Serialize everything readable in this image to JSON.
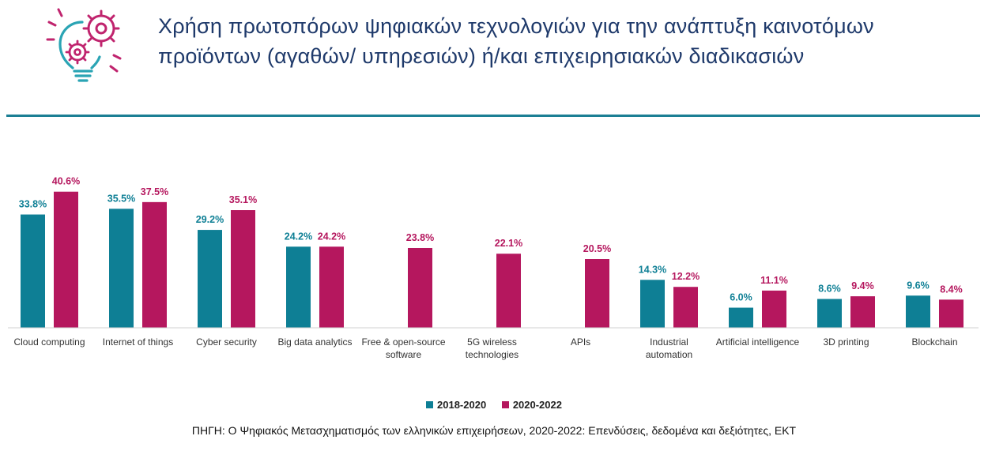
{
  "title_line1": "Χρήση πρωτοπόρων ψηφιακών τεχνολογιών για την ανάπτυξη καινοτόμων",
  "title_line2": "προϊόντων (αγαθών/ υπηρεσιών) ή/και επιχειρησιακών διαδικασιών",
  "source": "ΠΗΓΗ: Ο Ψηφιακός Μετασχηματισμός των ελληνικών επιχειρήσεων, 2020-2022: Επενδύσεις, δεδομένα και δεξιότητες, ΕΚΤ",
  "colors": {
    "series1": "#0e7f95",
    "series2": "#b5175e",
    "title": "#1f3a6b",
    "rule": "#1b7f94",
    "logo_pink": "#c0246e",
    "logo_teal": "#2aa4b4"
  },
  "chart_data": {
    "type": "bar",
    "categories": [
      [
        "Cloud computing"
      ],
      [
        "Internet of things"
      ],
      [
        "Cyber security"
      ],
      [
        "Big data analytics"
      ],
      [
        "Free & open-source",
        "software"
      ],
      [
        "5G wireless",
        "technologies"
      ],
      [
        "APIs"
      ],
      [
        "Industrial",
        "automation"
      ],
      [
        "Artificial intelligence"
      ],
      [
        "3D printing"
      ],
      [
        "Blockchain"
      ]
    ],
    "series": [
      {
        "name": "2018-2020",
        "values": [
          33.8,
          35.5,
          29.2,
          24.2,
          null,
          null,
          null,
          14.3,
          6.0,
          8.6,
          9.6
        ],
        "labels": [
          "33.8%",
          "35.5%",
          "29.2%",
          "24.2%",
          null,
          null,
          null,
          "14.3%",
          "6.0%",
          "8.6%",
          "9.6%"
        ]
      },
      {
        "name": "2020-2022",
        "values": [
          40.6,
          37.5,
          35.1,
          24.2,
          23.8,
          22.1,
          20.5,
          12.2,
          11.1,
          9.4,
          8.4
        ],
        "labels": [
          "40.6%",
          "37.5%",
          "35.1%",
          "24.2%",
          "23.8%",
          "22.1%",
          "20.5%",
          "12.2%",
          "11.1%",
          "9.4%",
          "8.4%"
        ]
      }
    ],
    "ylim": [
      0,
      41
    ],
    "grid": false,
    "legend": "bottom-center"
  }
}
